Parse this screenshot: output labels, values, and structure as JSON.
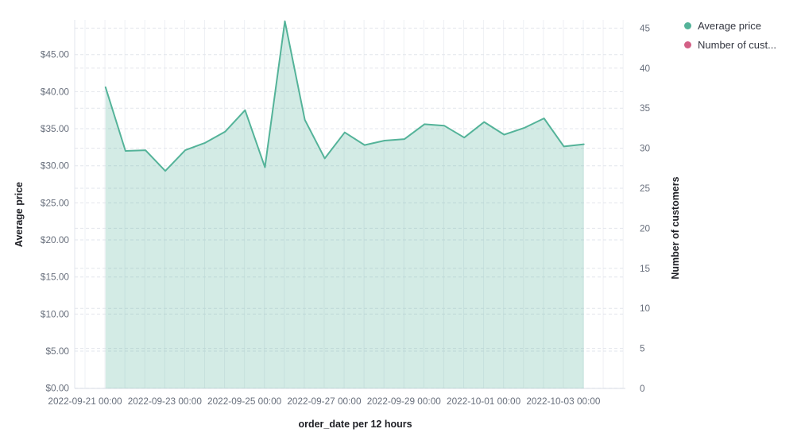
{
  "chart_data": {
    "type": "area",
    "xlabel": "order_date per 12 hours",
    "ylabel_left": "Average price",
    "ylabel_right": "Number of customers",
    "grid": true,
    "legend_position": "top-right",
    "ylim_left": [
      0,
      50.8
    ],
    "ylim_right": [
      0,
      47
    ],
    "y_left_ticks": [
      "$0.00",
      "$5.00",
      "$10.00",
      "$15.00",
      "$20.00",
      "$25.00",
      "$30.00",
      "$35.00",
      "$40.00",
      "$45.00"
    ],
    "y_right_ticks": [
      "0",
      "5",
      "10",
      "15",
      "20",
      "25",
      "30",
      "35",
      "40",
      "45"
    ],
    "x_ticks": [
      "2022-09-21 00:00",
      "2022-09-23 00:00",
      "2022-09-25 00:00",
      "2022-09-27 00:00",
      "2022-09-29 00:00",
      "2022-10-01 00:00",
      "2022-10-03 00:00"
    ],
    "x": [
      "2022-09-21 12:00",
      "2022-09-22 00:00",
      "2022-09-22 12:00",
      "2022-09-23 00:00",
      "2022-09-23 12:00",
      "2022-09-24 00:00",
      "2022-09-24 12:00",
      "2022-09-25 00:00",
      "2022-09-25 12:00",
      "2022-09-26 00:00",
      "2022-09-26 12:00",
      "2022-09-27 00:00",
      "2022-09-27 12:00",
      "2022-09-28 00:00",
      "2022-09-28 12:00",
      "2022-09-29 00:00",
      "2022-09-29 12:00",
      "2022-09-30 00:00",
      "2022-09-30 12:00",
      "2022-10-01 00:00",
      "2022-10-01 12:00",
      "2022-10-02 00:00",
      "2022-10-02 12:00",
      "2022-10-03 00:00",
      "2022-10-03 12:00"
    ],
    "series": [
      {
        "name": "Average price",
        "axis": "left",
        "color": "#54B399",
        "fill_opacity": 0.26,
        "values": [
          40.6,
          32.0,
          32.1,
          29.3,
          32.1,
          33.1,
          34.6,
          37.5,
          29.8,
          49.5,
          36.2,
          31.0,
          34.5,
          32.8,
          33.4,
          33.6,
          35.6,
          35.4,
          33.8,
          35.9,
          34.2,
          35.1,
          36.4,
          32.6,
          32.9
        ]
      },
      {
        "name": "Number of customers",
        "axis": "right",
        "color": "#D36086",
        "values": []
      }
    ]
  },
  "legend": {
    "items": [
      {
        "label": "Average price",
        "color": "#54B399"
      },
      {
        "label": "Number of cust...",
        "color": "#D36086"
      }
    ]
  },
  "colors": {
    "grid_dashed": "#e2e5ec",
    "grid_vertical": "#eef0f4",
    "axis_line": "#d8dde6",
    "tick_text": "#69707d"
  }
}
